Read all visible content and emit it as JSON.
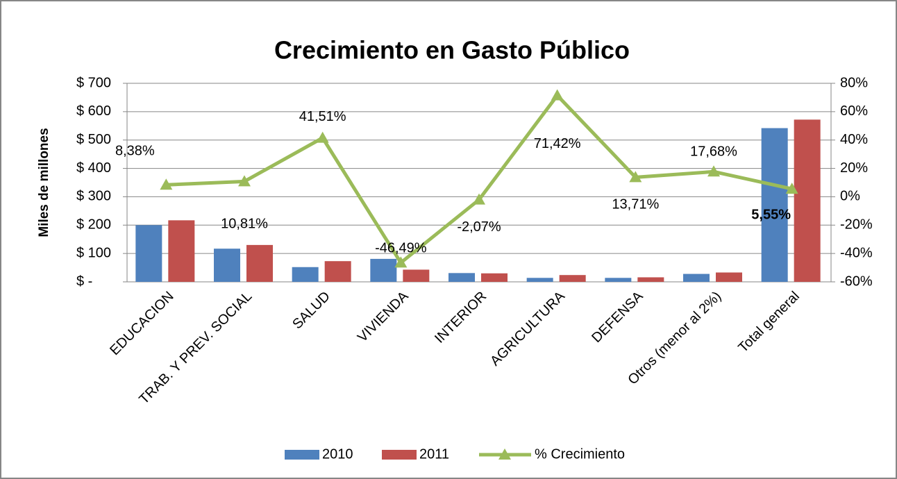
{
  "chart_data": {
    "type": "bar_line",
    "title": "Crecimiento en Gasto Público",
    "y_label": "Miles de millones",
    "categories": [
      "EDUCACION",
      "TRAB. Y PREV. SOCIAL",
      "SALUD",
      "VIVIENDA",
      "INTERIOR",
      "AGRICULTURA",
      "DEFENSA",
      "Otros (menor al 2%)",
      "Total general"
    ],
    "series": [
      {
        "name": "2010",
        "color": "#4f81bd",
        "values": [
          200,
          117,
          52,
          81,
          31,
          14,
          14,
          28,
          542
        ]
      },
      {
        "name": "2011",
        "color": "#c0504d",
        "values": [
          217,
          130,
          73,
          43,
          30,
          24,
          16,
          33,
          572
        ]
      },
      {
        "name": "% Crecimiento",
        "color": "#9bbb59",
        "axis": "y2",
        "type": "line",
        "values": [
          8.38,
          10.81,
          41.51,
          -46.49,
          -2.07,
          71.42,
          13.71,
          17.68,
          5.55
        ],
        "value_labels": [
          "8,38%",
          "10,81%",
          "41,51%",
          "-46,49%",
          "-2,07%",
          "71,42%",
          "13,71%",
          "17,68%",
          "5,55%"
        ]
      }
    ],
    "ylim": [
      0,
      700
    ],
    "yticks": [
      {
        "value": 0,
        "label": "$ -"
      },
      {
        "value": 100,
        "label": "$ 100"
      },
      {
        "value": 200,
        "label": "$ 200"
      },
      {
        "value": 300,
        "label": "$ 300"
      },
      {
        "value": 400,
        "label": "$ 400"
      },
      {
        "value": 500,
        "label": "$ 500"
      },
      {
        "value": 600,
        "label": "$ 600"
      },
      {
        "value": 700,
        "label": "$ 700"
      }
    ],
    "y2lim": [
      -60,
      80
    ],
    "y2ticks": [
      {
        "value": -60,
        "label": "-60%"
      },
      {
        "value": -40,
        "label": "-40%"
      },
      {
        "value": -20,
        "label": "-20%"
      },
      {
        "value": 0,
        "label": "0%"
      },
      {
        "value": 20,
        "label": "20%"
      },
      {
        "value": 40,
        "label": "40%"
      },
      {
        "value": 60,
        "label": "60%"
      },
      {
        "value": 80,
        "label": "80%"
      }
    ],
    "grid": true,
    "legend": "bottom"
  }
}
